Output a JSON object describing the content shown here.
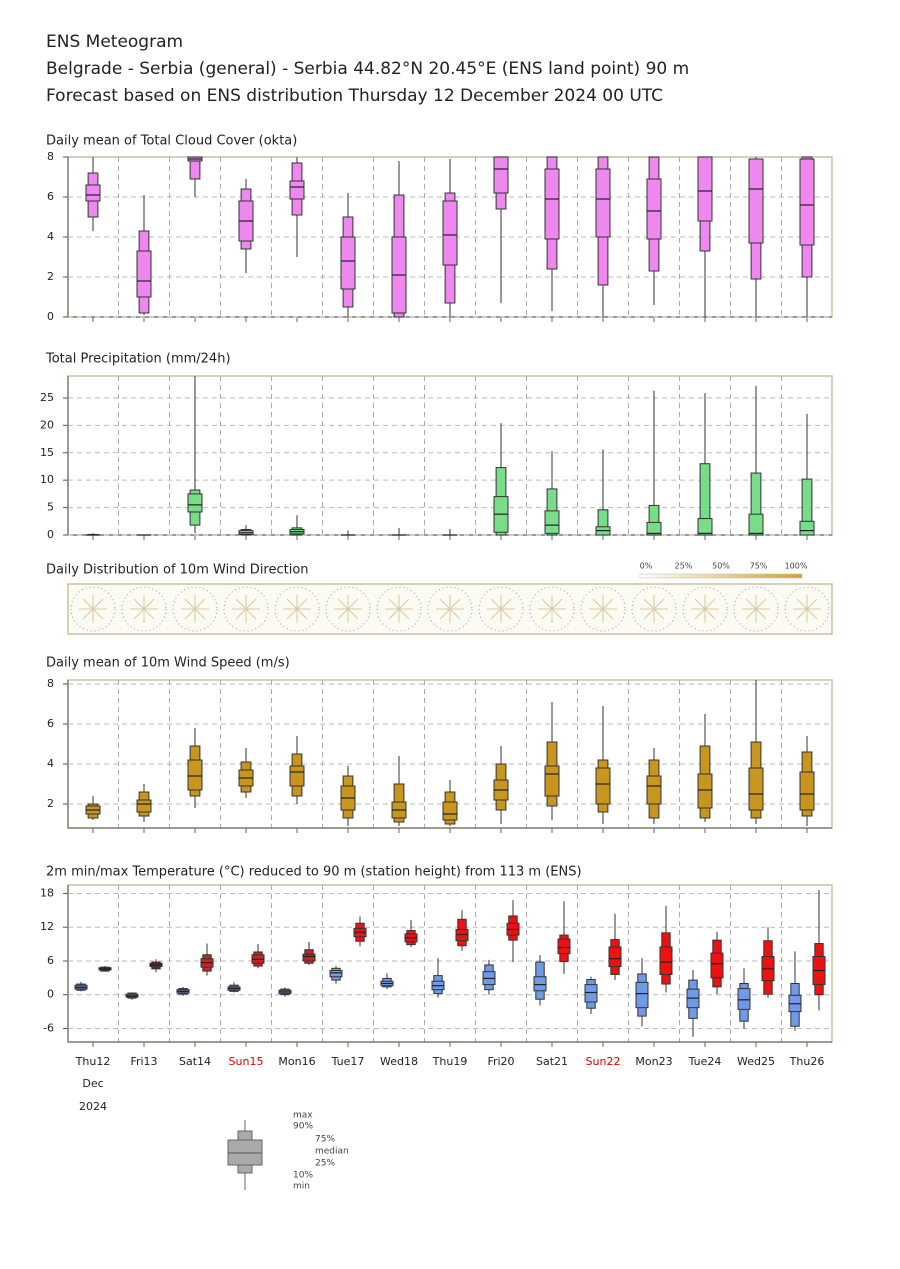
{
  "header": {
    "title": "ENS Meteogram",
    "location": "Belgrade - Serbia (general) - Serbia 44.82°N 20.45°E (ENS land point) 90 m",
    "forecast": "Forecast based on ENS distribution Thursday 12 December 2024 00 UTC"
  },
  "chart_data": [
    {
      "type": "box",
      "title": "Daily mean of Total Cloud Cover (okta)",
      "ylim": [
        0,
        8
      ],
      "yticks": [
        0,
        2,
        4,
        6,
        8
      ],
      "grid": true,
      "series": [
        {
          "color": "#ee88ee",
          "min": [
            4.3,
            0.1,
            6.0,
            2.2,
            3.0,
            0.0,
            0.0,
            0.0,
            0.7,
            0.3,
            0.0,
            0.6,
            0.0,
            0.0,
            0.0
          ],
          "p10": [
            5.0,
            0.2,
            6.9,
            3.4,
            5.1,
            0.5,
            0.0,
            0.7,
            5.4,
            2.4,
            1.6,
            2.3,
            3.3,
            1.9,
            2.0
          ],
          "p25": [
            5.8,
            1.0,
            7.8,
            3.8,
            5.9,
            1.4,
            0.2,
            2.6,
            6.2,
            3.9,
            4.0,
            3.9,
            4.8,
            3.7,
            3.6
          ],
          "median": [
            6.1,
            1.8,
            7.9,
            4.8,
            6.5,
            2.8,
            2.1,
            4.1,
            7.4,
            5.9,
            5.9,
            5.3,
            6.3,
            6.4,
            5.6
          ],
          "p75": [
            6.6,
            3.3,
            8.0,
            5.8,
            6.8,
            4.0,
            4.0,
            5.8,
            8.0,
            7.4,
            7.4,
            6.9,
            8.0,
            7.9,
            7.9
          ],
          "p90": [
            7.2,
            4.3,
            8.0,
            6.4,
            7.7,
            5.0,
            6.1,
            6.2,
            8.0,
            8.0,
            8.0,
            8.0,
            8.0,
            7.9,
            8.0
          ],
          "max": [
            8.0,
            6.1,
            8.0,
            6.9,
            8.0,
            6.2,
            7.8,
            7.9,
            8.0,
            8.0,
            8.0,
            8.0,
            8.0,
            8.0,
            8.0
          ]
        }
      ]
    },
    {
      "type": "box",
      "title": "Total Precipitation (mm/24h)",
      "ylim": [
        0,
        29
      ],
      "yticks": [
        0,
        5,
        10,
        15,
        20,
        25
      ],
      "grid": true,
      "series": [
        {
          "color": "#77dd88",
          "min": [
            0,
            0,
            0.3,
            0,
            0,
            0,
            0,
            0,
            0,
            0,
            0,
            0,
            0,
            0,
            0
          ],
          "p10": [
            0,
            0,
            1.8,
            0,
            0,
            0,
            0,
            0,
            0,
            0,
            0,
            0,
            0,
            0,
            0
          ],
          "p25": [
            0,
            0,
            4.2,
            0.1,
            0.2,
            0,
            0,
            0,
            0.5,
            0.3,
            0,
            0,
            0,
            0,
            0
          ],
          "median": [
            0,
            0,
            5.5,
            0.4,
            0.6,
            0,
            0,
            0,
            3.8,
            1.8,
            0.8,
            0.3,
            0.3,
            0.3,
            0.8
          ],
          "p75": [
            0,
            0,
            7.5,
            0.8,
            1.0,
            0,
            0,
            0,
            7.0,
            4.4,
            1.5,
            2.3,
            3.0,
            3.8,
            2.5
          ],
          "p90": [
            0.1,
            0,
            8.2,
            1.0,
            1.3,
            0,
            0,
            0,
            12.3,
            8.4,
            4.6,
            5.4,
            13.0,
            11.3,
            10.2
          ],
          "max": [
            0.3,
            0,
            29,
            1.8,
            3.6,
            0.8,
            1.3,
            1.1,
            20.4,
            15.3,
            15.6,
            26.3,
            25.9,
            27.2,
            22.1
          ]
        }
      ]
    },
    {
      "type": "rose",
      "title": "Daily Distribution of 10m Wind Direction",
      "scale_labels": [
        "0%",
        "25%",
        "50%",
        "75%",
        "100%"
      ],
      "color": "#e0b040"
    },
    {
      "type": "box",
      "title": "Daily mean of 10m Wind Speed (m/s)",
      "ylim": [
        0.8,
        8.2
      ],
      "yticks": [
        2,
        4,
        6,
        8
      ],
      "grid": true,
      "series": [
        {
          "color": "#c8961e",
          "min": [
            1.2,
            1.1,
            1.8,
            2.3,
            2.0,
            0.9,
            0.9,
            0.9,
            1.0,
            1.2,
            1.0,
            1.0,
            1.1,
            1.0,
            0.9
          ],
          "p10": [
            1.3,
            1.4,
            2.4,
            2.6,
            2.4,
            1.3,
            1.1,
            1.0,
            1.7,
            1.9,
            1.6,
            1.3,
            1.3,
            1.3,
            1.4
          ],
          "p25": [
            1.5,
            1.6,
            2.7,
            2.9,
            2.9,
            1.7,
            1.3,
            1.2,
            2.2,
            2.4,
            2.0,
            2.0,
            1.8,
            1.7,
            1.7
          ],
          "median": [
            1.7,
            2.0,
            3.4,
            3.3,
            3.6,
            2.3,
            1.7,
            1.5,
            2.7,
            3.5,
            3.0,
            2.9,
            2.7,
            2.5,
            2.5
          ],
          "p75": [
            1.9,
            2.2,
            4.2,
            3.7,
            3.9,
            2.9,
            2.1,
            2.1,
            3.2,
            3.9,
            3.8,
            3.4,
            3.5,
            3.8,
            3.6
          ],
          "p90": [
            2.0,
            2.6,
            4.9,
            4.1,
            4.5,
            3.4,
            3.0,
            2.6,
            4.0,
            5.1,
            4.2,
            4.2,
            4.9,
            5.1,
            4.6
          ],
          "max": [
            2.4,
            3.0,
            5.8,
            4.8,
            5.4,
            3.9,
            4.4,
            3.2,
            4.9,
            7.1,
            6.9,
            4.8,
            6.5,
            8.2,
            5.4
          ]
        }
      ]
    },
    {
      "type": "box",
      "title": "2m min/max Temperature (°C) reduced to 90 m (station height) from 113 m (ENS)",
      "ylim": [
        -8.4,
        19.5
      ],
      "yticks": [
        -6,
        0,
        6,
        12,
        18
      ],
      "grid": true,
      "categories": [
        "Thu12",
        "Fri13",
        "Sat14",
        "Sun15",
        "Mon16",
        "Tue17",
        "Wed18",
        "Thu19",
        "Fri20",
        "Sat21",
        "Sun22",
        "Mon23",
        "Tue24",
        "Wed25",
        "Thu26"
      ],
      "category_colors": [
        "#222222",
        "#222222",
        "#222222",
        "#dd0000",
        "#222222",
        "#222222",
        "#222222",
        "#222222",
        "#222222",
        "#222222",
        "#dd0000",
        "#222222",
        "#222222",
        "#222222",
        "#222222"
      ],
      "month": "Dec",
      "year": "2024",
      "series": [
        {
          "colors": [
            "#5a78b8",
            "#5a78b8",
            "#5a78b8",
            "#5a78b8",
            "#5a78b8",
            "#6f9ae8",
            "#6f9ae8",
            "#6f9ae8",
            "#6f9ae8",
            "#6f9ae8",
            "#6f9ae8",
            "#6f9ae8",
            "#6f9ae8",
            "#6f9ae8",
            "#6f9ae8"
          ],
          "min": [
            0.6,
            -0.9,
            -0.2,
            0.4,
            -0.3,
            2.0,
            1.0,
            -0.5,
            0.0,
            -1.9,
            -3.4,
            -5.6,
            -7.5,
            -6.1,
            -6.4
          ],
          "p10": [
            0.8,
            -0.6,
            0.1,
            0.6,
            0.0,
            2.6,
            1.4,
            0.2,
            0.9,
            -0.8,
            -2.4,
            -3.8,
            -4.2,
            -4.7,
            -5.6
          ],
          "p25": [
            1.0,
            -0.4,
            0.3,
            0.8,
            0.2,
            3.2,
            1.6,
            0.9,
            1.8,
            0.7,
            -1.3,
            -2.3,
            -2.3,
            -2.6,
            -3.0
          ],
          "median": [
            1.3,
            -0.2,
            0.6,
            1.1,
            0.5,
            3.9,
            2.0,
            1.6,
            2.9,
            1.8,
            0.4,
            0.2,
            -0.6,
            -0.9,
            -1.6
          ],
          "p75": [
            1.7,
            0.1,
            0.9,
            1.4,
            0.8,
            4.3,
            2.4,
            2.4,
            4.1,
            3.2,
            1.8,
            2.2,
            1.0,
            1.1,
            -0.1
          ],
          "p90": [
            1.9,
            0.3,
            1.1,
            1.7,
            1.0,
            4.7,
            2.9,
            3.4,
            5.3,
            5.8,
            2.7,
            3.7,
            2.6,
            2.0,
            2.0
          ],
          "max": [
            2.3,
            0.4,
            1.4,
            2.2,
            1.3,
            5.1,
            3.8,
            6.5,
            6.2,
            7.0,
            3.2,
            6.5,
            4.4,
            4.7,
            7.7
          ]
        },
        {
          "colors": [
            "#7a2020",
            "#7a2020",
            "#cc2222",
            "#cc2222",
            "#cc2222",
            "#ee1111",
            "#ee1111",
            "#ee1111",
            "#ee1111",
            "#ee1111",
            "#ee1111",
            "#ee1111",
            "#ee1111",
            "#ee1111",
            "#ee1111"
          ],
          "min": [
            4.1,
            4.0,
            3.4,
            4.7,
            5.3,
            8.6,
            8.5,
            7.8,
            5.8,
            3.7,
            2.6,
            0.4,
            0.1,
            -0.5,
            -2.8
          ],
          "p10": [
            4.2,
            4.6,
            4.2,
            5.1,
            5.6,
            9.5,
            8.9,
            8.7,
            9.7,
            5.9,
            3.6,
            1.9,
            1.4,
            0.1,
            0.0
          ],
          "p25": [
            4.4,
            5.0,
            4.9,
            5.6,
            6.0,
            10.3,
            9.4,
            9.6,
            10.6,
            7.3,
            5.0,
            3.6,
            3.0,
            2.5,
            1.8
          ],
          "median": [
            4.6,
            5.3,
            5.7,
            6.3,
            6.8,
            11.1,
            10.1,
            10.7,
            11.6,
            8.4,
            6.4,
            5.8,
            5.5,
            4.6,
            4.3
          ],
          "p75": [
            4.8,
            5.6,
            6.4,
            7.1,
            7.2,
            11.8,
            10.8,
            11.6,
            12.7,
            9.9,
            8.5,
            8.5,
            7.4,
            6.8,
            6.8
          ],
          "p90": [
            4.9,
            5.8,
            7.1,
            7.6,
            8.0,
            12.7,
            11.4,
            13.4,
            14.0,
            10.6,
            9.8,
            11.0,
            9.7,
            9.6,
            9.1
          ],
          "max": [
            5.1,
            6.3,
            9.1,
            9.0,
            9.4,
            13.9,
            13.3,
            15.0,
            16.8,
            16.6,
            14.4,
            15.8,
            11.2,
            12.0,
            18.6
          ]
        }
      ]
    }
  ],
  "box_legend": {
    "labels": [
      "max",
      "90%",
      "75%",
      "median",
      "25%",
      "10%",
      "min"
    ]
  }
}
